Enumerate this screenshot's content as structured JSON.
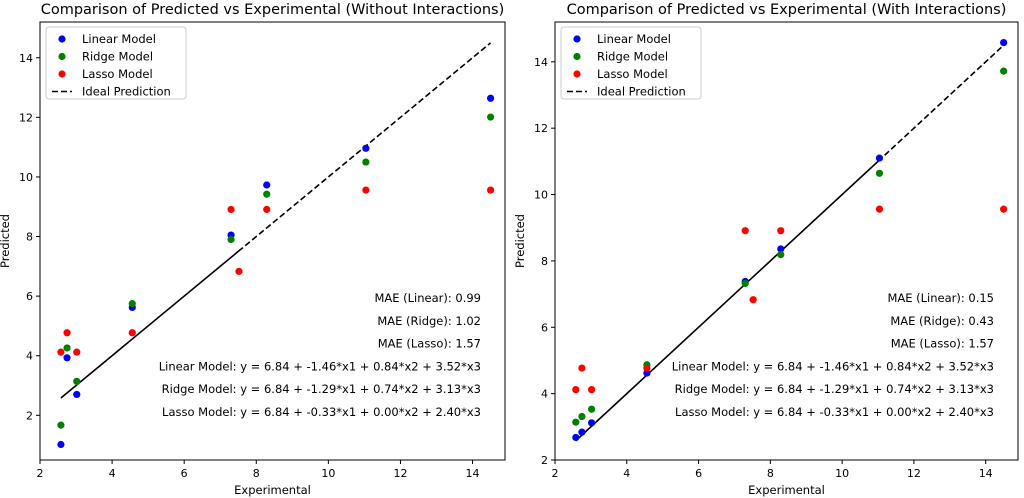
{
  "chart_data": [
    {
      "type": "scatter",
      "title": "Comparison of Predicted vs Experimental (Without Interactions)",
      "xlabel": "Experimental",
      "ylabel": "Predicted",
      "xlim": [
        2,
        14.9
      ],
      "ylim": [
        0.5,
        15.2
      ],
      "xticks": [
        2,
        4,
        6,
        8,
        10,
        12,
        14
      ],
      "yticks": [
        2,
        4,
        6,
        8,
        10,
        12,
        14
      ],
      "legend_position": "top-left",
      "legend": [
        "Linear Model",
        "Ridge Model",
        "Lasso Model",
        "Ideal Prediction"
      ],
      "ideal_line": {
        "x": [
          2.58,
          14.5
        ],
        "y": [
          2.58,
          14.5
        ],
        "segments": [
          {
            "x": [
              2.58,
              7.5
            ],
            "style": "solid"
          },
          {
            "x": [
              7.5,
              14.5
            ],
            "style": "dashed"
          }
        ]
      },
      "series": [
        {
          "name": "Linear Model",
          "color": "#0000ff",
          "x": [
            2.58,
            2.75,
            3.02,
            4.56,
            7.3,
            8.29,
            11.04,
            14.5
          ],
          "y": [
            1.02,
            3.93,
            2.7,
            5.62,
            8.05,
            9.73,
            10.96,
            12.64
          ]
        },
        {
          "name": "Ridge Model",
          "color": "#008000",
          "x": [
            2.58,
            2.75,
            3.02,
            4.56,
            7.3,
            8.29,
            11.04,
            14.5
          ],
          "y": [
            1.67,
            4.26,
            3.14,
            5.75,
            7.9,
            9.42,
            10.5,
            12.01
          ]
        },
        {
          "name": "Lasso Model",
          "color": "#ff0000",
          "x": [
            2.58,
            2.75,
            3.02,
            4.56,
            7.3,
            7.52,
            8.29,
            11.04,
            14.5
          ],
          "y": [
            4.12,
            4.77,
            4.12,
            4.77,
            8.91,
            6.83,
            8.91,
            9.56,
            9.56
          ]
        }
      ],
      "annotations": [
        "MAE (Linear): 0.99",
        "MAE (Ridge): 1.02",
        "MAE (Lasso): 1.57",
        "Linear Model: y = 6.84 + -1.46*x1 + 0.84*x2 + 3.52*x3",
        "Ridge Model: y = 6.84 + -1.29*x1 + 0.74*x2 + 3.13*x3",
        "Lasso Model: y = 6.84 + -0.33*x1 + 0.00*x2 + 2.40*x3"
      ]
    },
    {
      "type": "scatter",
      "title": "Comparison of Predicted vs Experimental (With Interactions)",
      "xlabel": "Experimental",
      "ylabel": "Predicted",
      "xlim": [
        2,
        14.9
      ],
      "ylim": [
        2.0,
        15.2
      ],
      "xticks": [
        2,
        4,
        6,
        8,
        10,
        12,
        14
      ],
      "yticks": [
        2,
        4,
        6,
        8,
        10,
        12,
        14
      ],
      "legend_position": "top-left",
      "legend": [
        "Linear Model",
        "Ridge Model",
        "Lasso Model",
        "Ideal Prediction"
      ],
      "ideal_line": {
        "x": [
          2.58,
          14.5
        ],
        "y": [
          2.58,
          14.5
        ],
        "segments": [
          {
            "x": [
              2.58,
              11.0
            ],
            "style": "solid"
          },
          {
            "x": [
              11.0,
              14.5
            ],
            "style": "dashed"
          }
        ]
      },
      "series": [
        {
          "name": "Linear Model",
          "color": "#0000ff",
          "x": [
            2.58,
            2.75,
            3.02,
            4.56,
            7.3,
            8.29,
            11.04,
            14.5
          ],
          "y": [
            2.68,
            2.84,
            3.12,
            4.62,
            7.38,
            8.36,
            11.1,
            14.58
          ]
        },
        {
          "name": "Ridge Model",
          "color": "#008000",
          "x": [
            2.58,
            2.75,
            3.02,
            4.56,
            7.3,
            8.29,
            11.04,
            14.5
          ],
          "y": [
            3.14,
            3.31,
            3.53,
            4.87,
            7.32,
            8.19,
            10.64,
            13.72
          ]
        },
        {
          "name": "Lasso Model",
          "color": "#ff0000",
          "x": [
            2.58,
            2.75,
            3.02,
            4.56,
            7.3,
            7.52,
            8.29,
            11.04,
            14.5
          ],
          "y": [
            4.12,
            4.77,
            4.12,
            4.77,
            8.91,
            6.83,
            8.91,
            9.56,
            9.56
          ]
        }
      ],
      "annotations": [
        "MAE (Linear): 0.15",
        "MAE (Ridge): 0.43",
        "MAE (Lasso): 1.57",
        "Linear Model: y = 6.84 + -1.46*x1 + 0.84*x2 + 3.52*x3",
        "Ridge Model: y = 6.84 + -1.29*x1 + 0.74*x2 + 3.13*x3",
        "Lasso Model: y = 6.84 + -0.33*x1 + 0.00*x2 + 2.40*x3"
      ]
    }
  ]
}
